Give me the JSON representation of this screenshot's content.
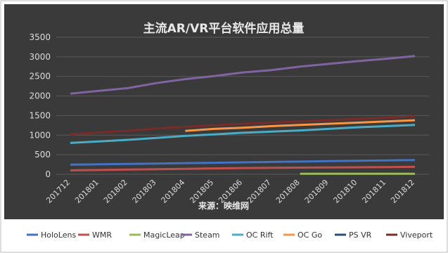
{
  "chart_data": {
    "type": "line",
    "title": "主流AR/VR平台软件应用总量",
    "source_note": "来源：映维网",
    "xlabel": "",
    "ylabel": "",
    "categories": [
      "201712",
      "201801",
      "201802",
      "201803",
      "201804",
      "201805",
      "201806",
      "201807",
      "201808",
      "201809",
      "201810",
      "201811",
      "201812"
    ],
    "yticks": [
      0,
      500,
      1000,
      1500,
      2000,
      2500,
      3000,
      3500
    ],
    "ylim": [
      0,
      3500
    ],
    "grid": "horizontal",
    "legend_position": "bottom",
    "series": [
      {
        "name": "HoloLens",
        "color": "#4472c4",
        "values": [
          245,
          255,
          265,
          275,
          285,
          295,
          305,
          315,
          325,
          335,
          345,
          355,
          365
        ]
      },
      {
        "name": "WMR",
        "color": "#c0504d",
        "values": [
          100,
          110,
          120,
          130,
          140,
          150,
          160,
          165,
          170,
          175,
          180,
          185,
          190
        ]
      },
      {
        "name": "MagicLeap",
        "color": "#9bbb59",
        "values": [
          null,
          null,
          null,
          null,
          null,
          null,
          null,
          null,
          15,
          15,
          15,
          15,
          15
        ]
      },
      {
        "name": "Steam",
        "color": "#8064a2",
        "values": [
          2060,
          2130,
          2200,
          2330,
          2430,
          2510,
          2600,
          2660,
          2750,
          2820,
          2890,
          2950,
          3020
        ]
      },
      {
        "name": "OC Rift",
        "color": "#4bacc6",
        "values": [
          800,
          840,
          880,
          930,
          980,
          1020,
          1060,
          1090,
          1120,
          1160,
          1200,
          1230,
          1260
        ]
      },
      {
        "name": "OC Go",
        "color": "#f79646",
        "values": [
          null,
          null,
          null,
          null,
          1110,
          1160,
          1190,
          1230,
          1260,
          1290,
          1320,
          1350,
          1380
        ]
      },
      {
        "name": "PS VR",
        "color": "#2c4d75",
        "values": [
          null,
          null,
          null,
          null,
          null,
          null,
          null,
          null,
          null,
          null,
          null,
          null,
          null
        ]
      },
      {
        "name": "Viveport",
        "color": "#772c2a",
        "values": [
          1020,
          1070,
          1110,
          1170,
          1210,
          1250,
          1290,
          1320,
          1350,
          1380,
          1410,
          1440,
          1480
        ]
      }
    ]
  }
}
